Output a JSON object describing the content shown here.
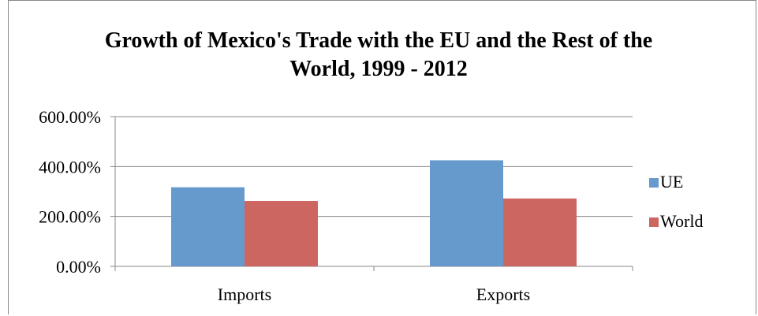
{
  "chart_data": {
    "type": "bar",
    "title": "Growth of Mexico's Trade with the EU and the Rest of the World, 1999 - 2012",
    "categories": [
      "Imports",
      "Exports"
    ],
    "series": [
      {
        "name": "UE",
        "values": [
          317,
          425
        ]
      },
      {
        "name": "World",
        "values": [
          262,
          272
        ]
      }
    ],
    "ylim": [
      0,
      600
    ],
    "yticks": [
      0,
      200,
      400,
      600
    ],
    "ytick_labels": [
      "0.00%",
      "200.00%",
      "400.00%",
      "600.00%"
    ],
    "xlabel": "",
    "ylabel": "",
    "grid": true,
    "legend": "right",
    "colors": {
      "UE": "#6699cc",
      "World": "#cc6661"
    }
  }
}
